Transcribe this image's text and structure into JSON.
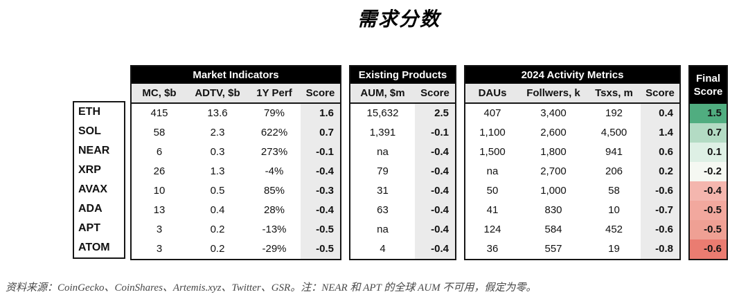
{
  "chart_data": {
    "type": "table",
    "title": "需求分数",
    "groups": {
      "market": {
        "title": "Market Indicators",
        "columns": [
          "MC, $b",
          "ADTV, $b",
          "1Y Perf",
          "Score"
        ]
      },
      "products": {
        "title": "Existing Products",
        "columns": [
          "AUM, $m",
          "Score"
        ]
      },
      "activity": {
        "title": "2024 Activity Metrics",
        "columns": [
          "DAUs",
          "Follwers, k",
          "Tsxs, m",
          "Score"
        ]
      },
      "final": {
        "title_line1": "Final",
        "title_line2": "Score"
      }
    },
    "rows": [
      {
        "asset": "ETH",
        "market": [
          "415",
          "13.6",
          "79%",
          "1.6"
        ],
        "products": [
          "15,632",
          "2.5"
        ],
        "activity": [
          "407",
          "3,400",
          "192",
          "0.4"
        ],
        "final": {
          "value": "1.5",
          "color": "#50ad80"
        }
      },
      {
        "asset": "SOL",
        "market": [
          "58",
          "2.3",
          "622%",
          "0.7"
        ],
        "products": [
          "1,391",
          "-0.1"
        ],
        "activity": [
          "1,100",
          "2,600",
          "4,500",
          "1.4"
        ],
        "final": {
          "value": "0.7",
          "color": "#b3dbc4"
        }
      },
      {
        "asset": "NEAR",
        "market": [
          "6",
          "0.3",
          "273%",
          "-0.1"
        ],
        "products": [
          "na",
          "-0.4"
        ],
        "activity": [
          "1,500",
          "1,800",
          "941",
          "0.6"
        ],
        "final": {
          "value": "0.1",
          "color": "#def0e5"
        }
      },
      {
        "asset": "XRP",
        "market": [
          "26",
          "1.3",
          "-4%",
          "-0.4"
        ],
        "products": [
          "79",
          "-0.4"
        ],
        "activity": [
          "na",
          "2,700",
          "206",
          "0.2"
        ],
        "final": {
          "value": "-0.2",
          "color": "#f5f8f2"
        }
      },
      {
        "asset": "AVAX",
        "market": [
          "10",
          "0.5",
          "85%",
          "-0.3"
        ],
        "products": [
          "31",
          "-0.4"
        ],
        "activity": [
          "50",
          "1,000",
          "58",
          "-0.6"
        ],
        "final": {
          "value": "-0.4",
          "color": "#f4b6ae"
        }
      },
      {
        "asset": "ADA",
        "market": [
          "13",
          "0.4",
          "28%",
          "-0.4"
        ],
        "products": [
          "63",
          "-0.4"
        ],
        "activity": [
          "41",
          "830",
          "10",
          "-0.7"
        ],
        "final": {
          "value": "-0.5",
          "color": "#f2a89e"
        }
      },
      {
        "asset": "APT",
        "market": [
          "3",
          "0.2",
          "-13%",
          "-0.5"
        ],
        "products": [
          "na",
          "-0.4"
        ],
        "activity": [
          "124",
          "584",
          "452",
          "-0.6"
        ],
        "final": {
          "value": "-0.5",
          "color": "#efa094"
        }
      },
      {
        "asset": "ATOM",
        "market": [
          "3",
          "0.2",
          "-29%",
          "-0.5"
        ],
        "products": [
          "4",
          "-0.4"
        ],
        "activity": [
          "36",
          "557",
          "19",
          "-0.8"
        ],
        "final": {
          "value": "-0.6",
          "color": "#ea7c71"
        }
      }
    ],
    "footer": "资料来源：CoinGecko、CoinShares、Artemis.xyz、Twitter、GSR。注：NEAR 和 APT 的全球 AUM 不可用，假定为零。",
    "colors": {
      "header_bg": "#000000",
      "header_text": "#ffffff",
      "subheader_bg": "#e8e8e8",
      "score_column_bg": "#ebebeb",
      "border": "#151515",
      "final_positive_green": "#50ad80",
      "final_negative_red": "#ea7c71"
    }
  }
}
